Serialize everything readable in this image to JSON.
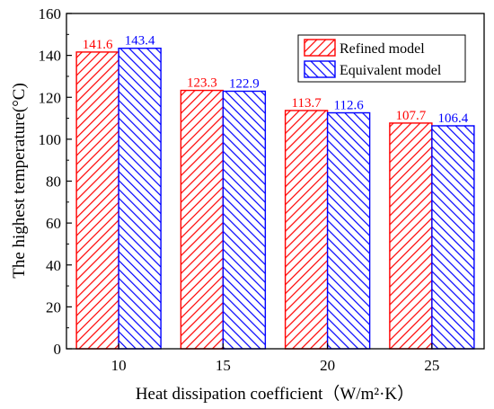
{
  "chart_data": {
    "type": "bar",
    "categories": [
      "10",
      "15",
      "20",
      "25"
    ],
    "series": [
      {
        "name": "Refined model",
        "values": [
          141.6,
          123.3,
          113.7,
          107.7
        ],
        "color": "#ff0000",
        "labels": [
          "141.6",
          "123.3",
          "113.7",
          "107.7"
        ]
      },
      {
        "name": "Equivalent model",
        "values": [
          143.4,
          122.9,
          112.6,
          106.4
        ],
        "color": "#0000ff",
        "labels": [
          "143.4",
          "122.9",
          "112.6",
          "106.4"
        ]
      }
    ],
    "xlabel": "Heat dissipation coefficient（W/m²·K）",
    "ylabel": "The highest temperature(°C)",
    "ylim": [
      0,
      160
    ],
    "yticks": [
      "0",
      "20",
      "40",
      "60",
      "80",
      "100",
      "120",
      "140",
      "160"
    ],
    "legend_position": "top-right",
    "grid": false,
    "pattern": "diagonal-hatch"
  }
}
